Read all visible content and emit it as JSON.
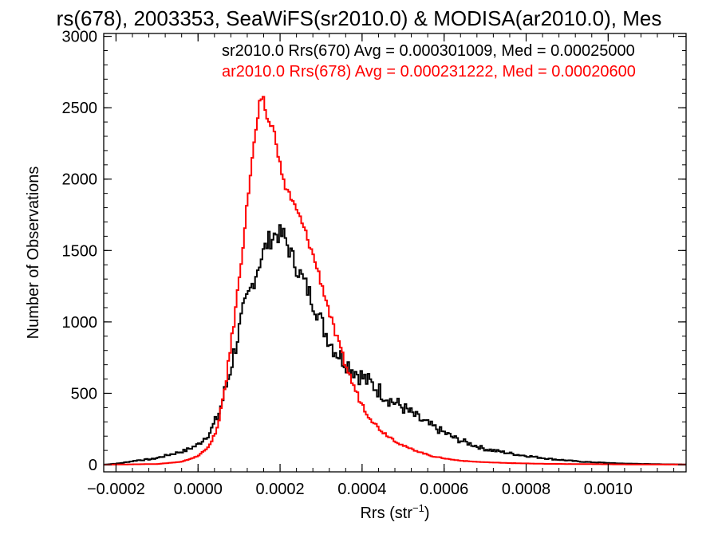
{
  "chart_data": {
    "type": "line",
    "title": "rs(678), 2003353, SeaWiFS(sr2010.0) & MODISA(ar2010.0), Mes",
    "xlabel": "Rrs (str",
    "xlabel_sup": "−1",
    "xlabel_close": ")",
    "ylabel": "Number of Observations",
    "xlim": [
      -0.00023,
      0.00119
    ],
    "ylim": [
      -50,
      3020
    ],
    "x_ticks": [
      -0.0002,
      0.0,
      0.0002,
      0.0004,
      0.0006,
      0.0008,
      0.001
    ],
    "x_tick_labels": [
      "−0.0002",
      "0.0000",
      "0.0002",
      "0.0004",
      "0.0006",
      "0.0008",
      "0.0010"
    ],
    "y_ticks": [
      0,
      500,
      1000,
      1500,
      2000,
      2500,
      3000
    ],
    "y_tick_labels": [
      "0",
      "500",
      "1000",
      "1500",
      "2000",
      "2500",
      "3000"
    ],
    "grid": false,
    "legend_position": "top-right",
    "series": [
      {
        "name": "sr2010.0 Rrs(670) Avg = 0.000301009, Med = 0.00025000",
        "color": "#000000",
        "x": [
          -0.00023,
          -0.00019,
          -0.00015,
          -0.00011,
          -7e-05,
          -3e-05,
          0.0,
          3e-05,
          5e-05,
          7e-05,
          9e-05,
          0.00011,
          0.00013,
          0.00015,
          0.00017,
          0.00019,
          0.00021,
          0.00023,
          0.00025,
          0.00027,
          0.00029,
          0.00031,
          0.00033,
          0.00035,
          0.00037,
          0.00039,
          0.00041,
          0.00043,
          0.00045,
          0.00047,
          0.00049,
          0.00051,
          0.00053,
          0.00055,
          0.00057,
          0.00059,
          0.00061,
          0.00063,
          0.00065,
          0.00067,
          0.0007,
          0.00074,
          0.00078,
          0.00082,
          0.00086,
          0.0009,
          0.00094,
          0.00098,
          0.00102,
          0.00106,
          0.0011,
          0.00114,
          0.00119
        ],
        "y": [
          0,
          10,
          30,
          40,
          70,
          100,
          140,
          230,
          350,
          560,
          810,
          1070,
          1240,
          1420,
          1560,
          1620,
          1600,
          1450,
          1330,
          1210,
          1080,
          930,
          820,
          750,
          690,
          640,
          590,
          550,
          500,
          450,
          420,
          380,
          340,
          300,
          270,
          240,
          210,
          180,
          160,
          140,
          110,
          90,
          70,
          55,
          40,
          30,
          20,
          15,
          10,
          7,
          5,
          3,
          2
        ],
        "jitter": 70
      },
      {
        "name": "ar2010.0 Rrs(678) Avg = 0.000231222, Med = 0.00020600",
        "color": "#ff0000",
        "x": [
          -0.00023,
          -0.0001,
          -4e-05,
          0.0,
          3e-05,
          5e-05,
          7e-05,
          9e-05,
          0.00011,
          0.00013,
          0.00015,
          0.00016,
          0.00017,
          0.00018,
          0.00019,
          0.0002,
          0.00021,
          0.00022,
          0.00023,
          0.00025,
          0.00027,
          0.00029,
          0.00031,
          0.00033,
          0.00035,
          0.00037,
          0.00039,
          0.00041,
          0.00043,
          0.00045,
          0.00047,
          0.00049,
          0.00051,
          0.00053,
          0.00055,
          0.00057,
          0.00059,
          0.00061,
          0.00063,
          0.00065,
          0.00068,
          0.00072,
          0.00078,
          0.00085,
          0.00095,
          0.00105,
          0.00119
        ],
        "y": [
          0,
          5,
          20,
          60,
          140,
          280,
          620,
          1050,
          1550,
          2100,
          2520,
          2550,
          2400,
          2380,
          2280,
          2100,
          1960,
          1920,
          1840,
          1720,
          1560,
          1380,
          1180,
          960,
          780,
          620,
          480,
          370,
          290,
          230,
          190,
          150,
          120,
          100,
          80,
          60,
          50,
          40,
          32,
          26,
          20,
          15,
          10,
          6,
          4,
          2,
          1
        ],
        "jitter": 30
      }
    ]
  }
}
